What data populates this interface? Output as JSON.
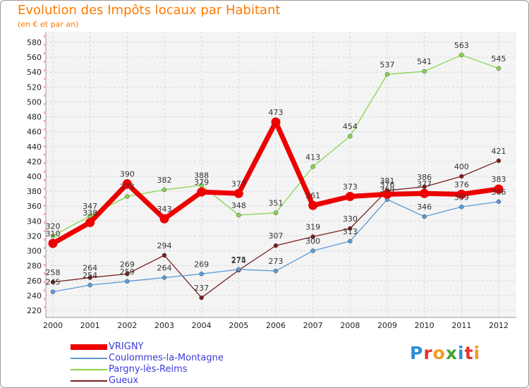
{
  "header": {
    "title": "Evolution des Impôts locaux par Habitant",
    "subtitle": "(en € et par an)"
  },
  "logo": {
    "text": "Proxiti",
    "colors": [
      "#2c8fd6",
      "#e8322b",
      "#f39a1f",
      "#3fa535",
      "#2c8fd6",
      "#e8322b",
      "#f39a1f"
    ]
  },
  "chart_data": {
    "type": "line",
    "x": [
      2000,
      2001,
      2002,
      2003,
      2004,
      2005,
      2006,
      2007,
      2008,
      2009,
      2010,
      2011,
      2012
    ],
    "ylim": [
      220,
      580
    ],
    "yticks": [
      220,
      240,
      260,
      280,
      300,
      320,
      340,
      360,
      380,
      400,
      420,
      440,
      460,
      480,
      500,
      520,
      540,
      560,
      580
    ],
    "grid": true,
    "legend_position": "bottom-left",
    "series": [
      {
        "name": "VRIGNY",
        "color": "#ee0000",
        "values": [
          310,
          338,
          390,
          343,
          379,
          377,
          473,
          361,
          373,
          376,
          377,
          376,
          383
        ]
      },
      {
        "name": "Coulommes-la-Montagne",
        "color": "#5b9bd5",
        "values": [
          245,
          254,
          259,
          264,
          269,
          275,
          273,
          300,
          313,
          369,
          346,
          359,
          366
        ]
      },
      {
        "name": "Pargny-lès-Reims",
        "color": "#86d54a",
        "values": [
          320,
          347,
          373,
          382,
          388,
          348,
          351,
          413,
          454,
          537,
          541,
          563,
          545
        ]
      },
      {
        "name": "Gueux",
        "color": "#7a2020",
        "values": [
          258,
          264,
          269,
          294,
          237,
          274,
          307,
          319,
          330,
          381,
          386,
          400,
          421
        ]
      }
    ],
    "labels": [
      {
        "series": 0,
        "index": 0,
        "text": "310"
      },
      {
        "series": 0,
        "index": 1,
        "text": "338"
      },
      {
        "series": 0,
        "index": 2,
        "text": "390"
      },
      {
        "series": 0,
        "index": 3,
        "text": "343"
      },
      {
        "series": 0,
        "index": 4,
        "text": "379"
      },
      {
        "series": 0,
        "index": 5,
        "text": "377"
      },
      {
        "series": 0,
        "index": 6,
        "text": "473"
      },
      {
        "series": 0,
        "index": 7,
        "text": "361"
      },
      {
        "series": 0,
        "index": 8,
        "text": "373"
      },
      {
        "series": 0,
        "index": 9,
        "text": "376"
      },
      {
        "series": 0,
        "index": 10,
        "text": "377"
      },
      {
        "series": 0,
        "index": 11,
        "text": "376"
      },
      {
        "series": 0,
        "index": 12,
        "text": "383"
      },
      {
        "series": 1,
        "index": 0,
        "text": "245"
      },
      {
        "series": 1,
        "index": 1,
        "text": "254"
      },
      {
        "series": 1,
        "index": 2,
        "text": "259"
      },
      {
        "series": 1,
        "index": 3,
        "text": "264"
      },
      {
        "series": 1,
        "index": 4,
        "text": "269"
      },
      {
        "series": 1,
        "index": 5,
        "text": "275"
      },
      {
        "series": 1,
        "index": 6,
        "text": "273"
      },
      {
        "series": 1,
        "index": 7,
        "text": "300"
      },
      {
        "series": 1,
        "index": 8,
        "text": "313"
      },
      {
        "series": 1,
        "index": 9,
        "text": "369"
      },
      {
        "series": 1,
        "index": 10,
        "text": "346"
      },
      {
        "series": 1,
        "index": 11,
        "text": "359"
      },
      {
        "series": 1,
        "index": 12,
        "text": "366"
      },
      {
        "series": 2,
        "index": 0,
        "text": "320"
      },
      {
        "series": 2,
        "index": 1,
        "text": "347"
      },
      {
        "series": 2,
        "index": 2,
        "text": "373"
      },
      {
        "series": 2,
        "index": 3,
        "text": "382"
      },
      {
        "series": 2,
        "index": 4,
        "text": "388"
      },
      {
        "series": 2,
        "index": 5,
        "text": "348"
      },
      {
        "series": 2,
        "index": 6,
        "text": "351"
      },
      {
        "series": 2,
        "index": 7,
        "text": "413"
      },
      {
        "series": 2,
        "index": 8,
        "text": "454"
      },
      {
        "series": 2,
        "index": 9,
        "text": "537"
      },
      {
        "series": 2,
        "index": 10,
        "text": "541"
      },
      {
        "series": 2,
        "index": 11,
        "text": "563"
      },
      {
        "series": 2,
        "index": 12,
        "text": "545"
      },
      {
        "series": 3,
        "index": 0,
        "text": "258"
      },
      {
        "series": 3,
        "index": 1,
        "text": "264"
      },
      {
        "series": 3,
        "index": 2,
        "text": "269"
      },
      {
        "series": 3,
        "index": 3,
        "text": "294"
      },
      {
        "series": 3,
        "index": 4,
        "text": "237"
      },
      {
        "series": 3,
        "index": 5,
        "text": "274"
      },
      {
        "series": 3,
        "index": 6,
        "text": "307"
      },
      {
        "series": 3,
        "index": 7,
        "text": "319"
      },
      {
        "series": 3,
        "index": 8,
        "text": "330"
      },
      {
        "series": 3,
        "index": 9,
        "text": "381"
      },
      {
        "series": 3,
        "index": 10,
        "text": "386"
      },
      {
        "series": 3,
        "index": 11,
        "text": "400"
      },
      {
        "series": 3,
        "index": 12,
        "text": "421"
      }
    ]
  }
}
